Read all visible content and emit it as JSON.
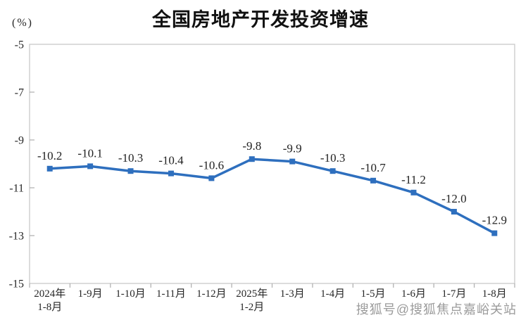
{
  "header": {
    "title": "全国房地产开发投资增速",
    "unit_label": "(%)"
  },
  "watermark": {
    "text": "搜狐号@搜狐焦点嘉峪关站"
  },
  "chart_data": {
    "type": "line",
    "title": "全国房地产开发投资增速",
    "ylabel": "(%)",
    "categories": [
      [
        "2024年",
        "1-8月"
      ],
      [
        "1-9月"
      ],
      [
        "1-10月"
      ],
      [
        "1-11月"
      ],
      [
        "1-12月"
      ],
      [
        "2025年",
        "1-2月"
      ],
      [
        "1-3月"
      ],
      [
        "1-4月"
      ],
      [
        "1-5月"
      ],
      [
        "1-6月"
      ],
      [
        "1-7月"
      ],
      [
        "1-8月"
      ]
    ],
    "series": [
      {
        "name": "全国房地产开发投资增速",
        "values": [
          -10.2,
          -10.1,
          -10.3,
          -10.4,
          -10.6,
          -9.8,
          -9.9,
          -10.3,
          -10.7,
          -11.2,
          -12.0,
          -12.9
        ]
      }
    ],
    "data_labels": [
      "-10.2",
      "-10.1",
      "-10.3",
      "-10.4",
      "-10.6",
      "-9.8",
      "-9.9",
      "-10.3",
      "-10.7",
      "-11.2",
      "-12.0",
      "-12.9"
    ],
    "ylim": [
      -15,
      -5
    ],
    "yticks": [
      -5,
      -7,
      -9,
      -11,
      -13,
      -15
    ],
    "grid": false,
    "legend_position": "none",
    "colors": {
      "line": "#2e6fbe",
      "marker": "#2e6fbe",
      "plot_border": "#c9c9c9",
      "tick": "#b3b3b3",
      "label_text": "#262626",
      "title_text": "#111111",
      "watermark_text": "#9b9b9b"
    },
    "marker_shape": "square"
  }
}
